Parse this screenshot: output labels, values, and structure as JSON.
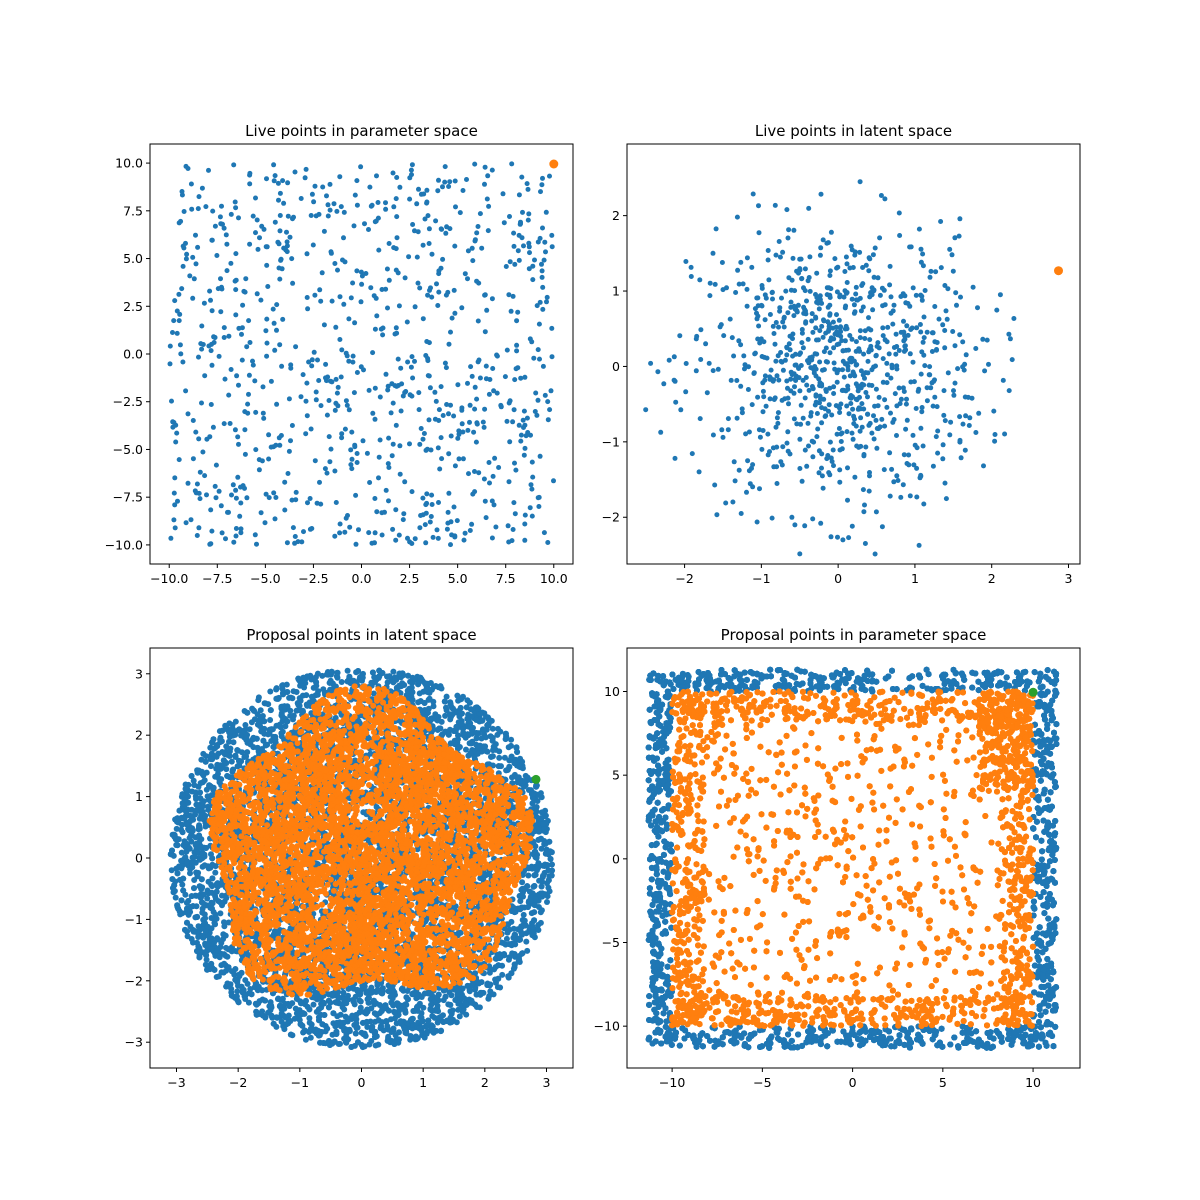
{
  "chart_data": [
    {
      "type": "scatter",
      "title": "Live points in parameter space",
      "xlim": [
        -11,
        11
      ],
      "ylim": [
        -11,
        11
      ],
      "xticks": [
        -10,
        -7.5,
        -5,
        -2.5,
        0,
        2.5,
        5,
        7.5,
        10
      ],
      "xtick_labels": [
        "−10.0",
        "−7.5",
        "−5.0",
        "−2.5",
        "0.0",
        "2.5",
        "5.0",
        "7.5",
        "10.0"
      ],
      "yticks": [
        -10,
        -7.5,
        -5,
        -2.5,
        0,
        2.5,
        5,
        7.5,
        10
      ],
      "ytick_labels": [
        "−10.0",
        "−7.5",
        "−5.0",
        "−2.5",
        "0.0",
        "2.5",
        "5.0",
        "7.5",
        "10.0"
      ],
      "grid": false,
      "series": [
        {
          "color": "#1f77b4",
          "distribution": "uniform-square",
          "center": [
            0,
            0
          ],
          "extent": 10,
          "count": 900,
          "marker_size": 2.5
        },
        {
          "color": "#ff7f0e",
          "points": [
            [
              10,
              9.95
            ]
          ],
          "marker_size": 4.5
        }
      ]
    },
    {
      "type": "scatter",
      "title": "Live points in latent space",
      "xlim": [
        -2.75,
        3.15
      ],
      "ylim": [
        -2.62,
        2.95
      ],
      "xticks": [
        -2,
        -1,
        0,
        1,
        2,
        3
      ],
      "xtick_labels": [
        "−2",
        "−1",
        "0",
        "1",
        "2",
        "3"
      ],
      "yticks": [
        -2,
        -1,
        0,
        1,
        2
      ],
      "ytick_labels": [
        "−2",
        "−1",
        "0",
        "1",
        "2"
      ],
      "grid": false,
      "series": [
        {
          "color": "#1f77b4",
          "distribution": "gaussian",
          "center": [
            0,
            0
          ],
          "sigma": 0.95,
          "clip_radius": 2.6,
          "count": 900,
          "marker_size": 2.5
        },
        {
          "color": "#ff7f0e",
          "points": [
            [
              2.87,
              1.27
            ]
          ],
          "marker_size": 4.5
        }
      ]
    },
    {
      "type": "scatter",
      "title": "Proposal points in latent space",
      "xlim": [
        -3.43,
        3.43
      ],
      "ylim": [
        -3.42,
        3.42
      ],
      "xticks": [
        -3,
        -2,
        -1,
        0,
        1,
        2,
        3
      ],
      "xtick_labels": [
        "−3",
        "−2",
        "−1",
        "0",
        "1",
        "2",
        "3"
      ],
      "yticks": [
        -3,
        -2,
        -1,
        0,
        1,
        2,
        3
      ],
      "ytick_labels": [
        "−3",
        "−2",
        "−1",
        "0",
        "1",
        "2",
        "3"
      ],
      "grid": false,
      "series": [
        {
          "color": "#1f77b4",
          "distribution": "uniform-disk",
          "center": [
            0,
            0
          ],
          "radius": 3.1,
          "count": 7000,
          "marker_size": 3
        },
        {
          "color": "#ff7f0e",
          "distribution": "blob",
          "center": [
            0.1,
            0.1
          ],
          "radius": 2.55,
          "count": 7000,
          "marker_size": 3
        },
        {
          "color": "#2ca02c",
          "points": [
            [
              2.83,
              1.28
            ]
          ],
          "marker_size": 4.5
        }
      ]
    },
    {
      "type": "scatter",
      "title": "Proposal points in parameter space",
      "xlim": [
        -12.5,
        12.6
      ],
      "ylim": [
        -12.5,
        12.6
      ],
      "xticks": [
        -10,
        -5,
        0,
        5,
        10
      ],
      "xtick_labels": [
        "−10",
        "−5",
        "0",
        "5",
        "10"
      ],
      "yticks": [
        -10,
        -5,
        0,
        5,
        10
      ],
      "ytick_labels": [
        "−10",
        "−5",
        "0",
        "5",
        "10"
      ],
      "grid": false,
      "series": [
        {
          "color": "#1f77b4",
          "distribution": "border-band",
          "inner": 10,
          "outer": 11.3,
          "count": 6000,
          "marker_size": 3
        },
        {
          "color": "#ff7f0e",
          "distribution": "uniform-square-dense-edges",
          "center": [
            0,
            0
          ],
          "extent": 10,
          "count": 7000,
          "marker_size": 3
        },
        {
          "color": "#2ca02c",
          "points": [
            [
              10,
              9.95
            ]
          ],
          "marker_size": 4.5
        }
      ]
    }
  ]
}
